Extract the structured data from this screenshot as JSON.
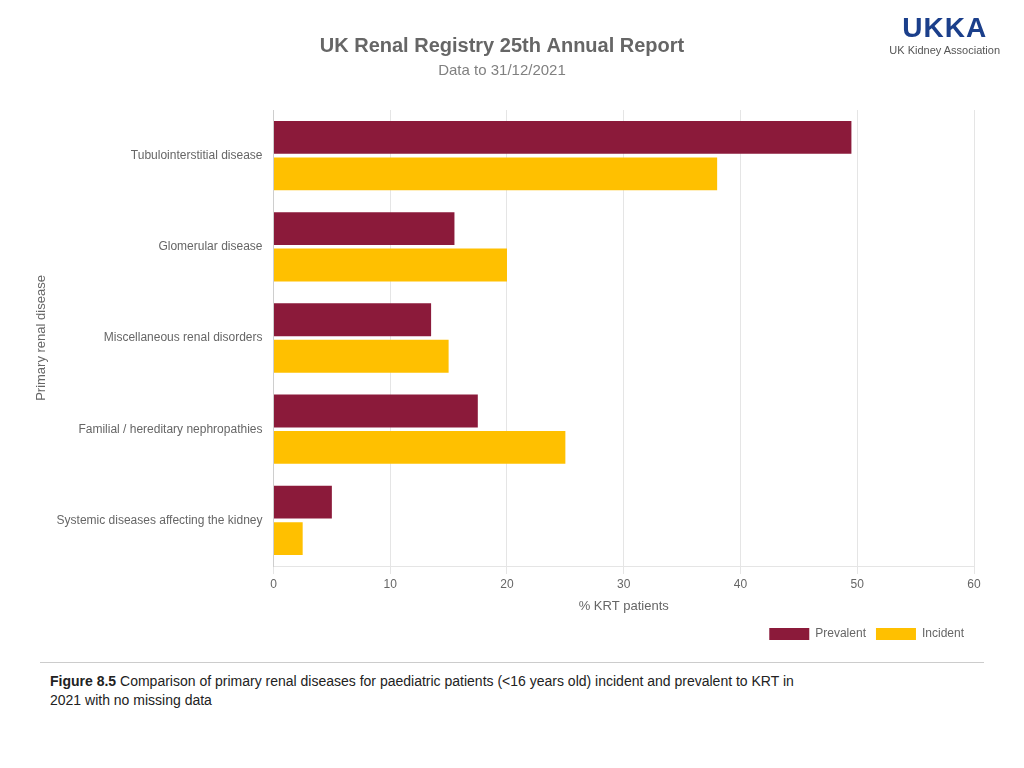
{
  "chart_data": {
    "type": "bar",
    "orientation": "horizontal",
    "title": "UK Renal Registry 25th Annual Report",
    "subtitle": "Data to 31/12/2021",
    "categories": [
      "Tubulointerstitial disease",
      "Glomerular disease",
      "Miscellaneous renal disorders",
      "Familial / hereditary nephropathies",
      "Systemic diseases affecting the kidney"
    ],
    "series": [
      {
        "name": "Prevalent",
        "color": "#8B1A3A",
        "values": [
          49.5,
          15.5,
          13.5,
          17.5,
          5.0
        ]
      },
      {
        "name": "Incident",
        "color": "#FFC000",
        "values": [
          38.0,
          20.0,
          15.0,
          25.0,
          2.5
        ]
      }
    ],
    "xlabel": "% KRT patients",
    "ylabel": "Primary renal disease",
    "xlim": [
      0,
      60
    ],
    "xticks": [
      0,
      10,
      20,
      30,
      40,
      50,
      60
    ],
    "grid": true,
    "legend": "lower right",
    "annotations": [
      "Figure 8.5",
      "Comparison of primary renal diseases for paediatric patients (<16 years old) incident and prevalent to KRT in\n2021 with no missing data",
      "UKKA",
      "UK Kidney Association"
    ]
  }
}
